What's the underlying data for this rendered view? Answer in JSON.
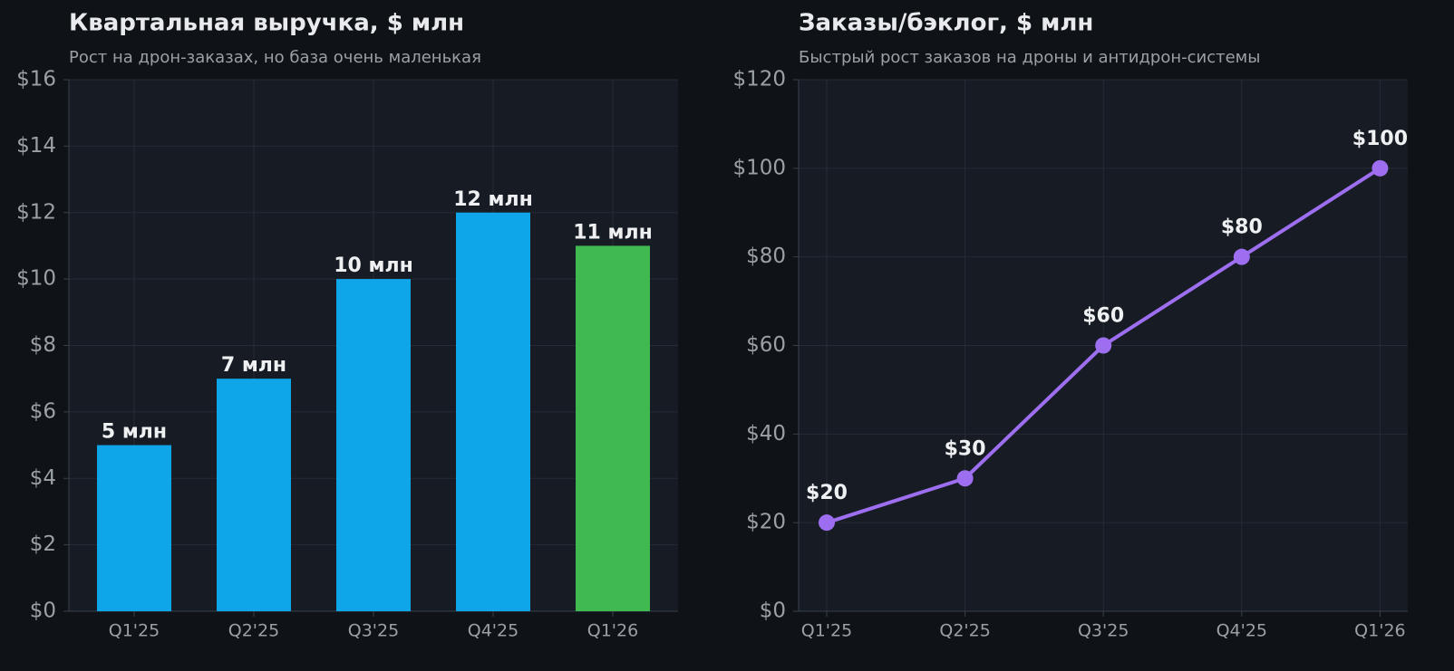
{
  "chart_data": [
    {
      "type": "bar",
      "title": "Квартальная выручка, $ млн",
      "subtitle": "Рост на дрон-заказах, но база очень маленькая",
      "categories": [
        "Q1'25",
        "Q2'25",
        "Q3'25",
        "Q4'25",
        "Q1'26"
      ],
      "values": [
        5,
        7,
        10,
        12,
        11
      ],
      "value_labels": [
        "5 млн",
        "7 млн",
        "10 млн",
        "12 млн",
        "11 млн"
      ],
      "colors": [
        "#0ea5e9",
        "#0ea5e9",
        "#0ea5e9",
        "#0ea5e9",
        "#3fb950"
      ],
      "ylim": [
        0,
        16
      ],
      "yticks": [
        {
          "value": 0,
          "label": "$0"
        },
        {
          "value": 2,
          "label": "$2"
        },
        {
          "value": 4,
          "label": "$4"
        },
        {
          "value": 6,
          "label": "$6"
        },
        {
          "value": 8,
          "label": "$8"
        },
        {
          "value": 10,
          "label": "$10"
        },
        {
          "value": 12,
          "label": "$12"
        },
        {
          "value": 14,
          "label": "$14"
        },
        {
          "value": 16,
          "label": "$16"
        }
      ],
      "grid": true
    },
    {
      "type": "line",
      "title": "Заказы/бэклог, $ млн",
      "subtitle": "Быстрый рост заказов на дроны и антидрон-системы",
      "categories": [
        "Q1'25",
        "Q2'25",
        "Q3'25",
        "Q4'25",
        "Q1'26"
      ],
      "values": [
        20,
        30,
        60,
        80,
        100
      ],
      "value_labels": [
        "$20",
        "$30",
        "$60",
        "$80",
        "$100"
      ],
      "color": "#9d6ff0",
      "ylim": [
        0,
        120
      ],
      "yticks": [
        {
          "value": 0,
          "label": "$0"
        },
        {
          "value": 20,
          "label": "$20"
        },
        {
          "value": 40,
          "label": "$40"
        },
        {
          "value": 60,
          "label": "$60"
        },
        {
          "value": 80,
          "label": "$80"
        },
        {
          "value": 100,
          "label": "$100"
        },
        {
          "value": 120,
          "label": "$120"
        }
      ],
      "grid": true
    }
  ]
}
